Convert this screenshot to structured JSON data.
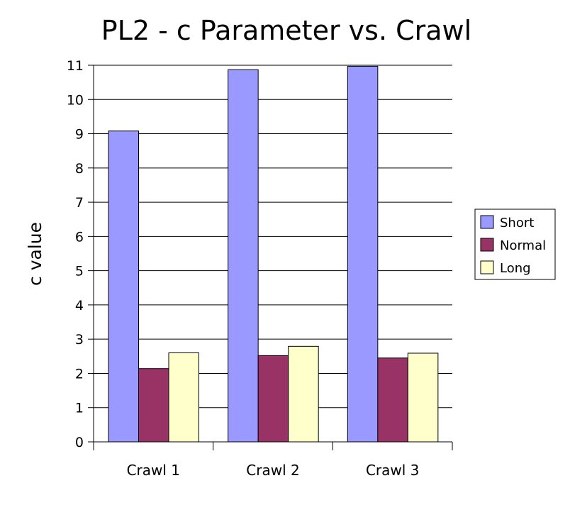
{
  "chart_data": {
    "type": "bar",
    "title": "PL2 - c Parameter vs. Crawl",
    "xlabel": "",
    "ylabel": "c value",
    "categories": [
      "Crawl 1",
      "Crawl 2",
      "Crawl 3"
    ],
    "series": [
      {
        "name": "Short",
        "color": "#9999ff",
        "values": [
          9.08,
          10.87,
          10.97
        ]
      },
      {
        "name": "Normal",
        "color": "#993366",
        "values": [
          2.14,
          2.52,
          2.45
        ]
      },
      {
        "name": "Long",
        "color": "#ffffcc",
        "values": [
          2.6,
          2.79,
          2.59
        ]
      }
    ],
    "ylim": [
      0,
      11
    ],
    "yticks": [
      "0",
      "1",
      "2",
      "3",
      "4",
      "5",
      "6",
      "7",
      "8",
      "9",
      "10",
      "11"
    ],
    "grid": true,
    "legend_position": "right"
  }
}
